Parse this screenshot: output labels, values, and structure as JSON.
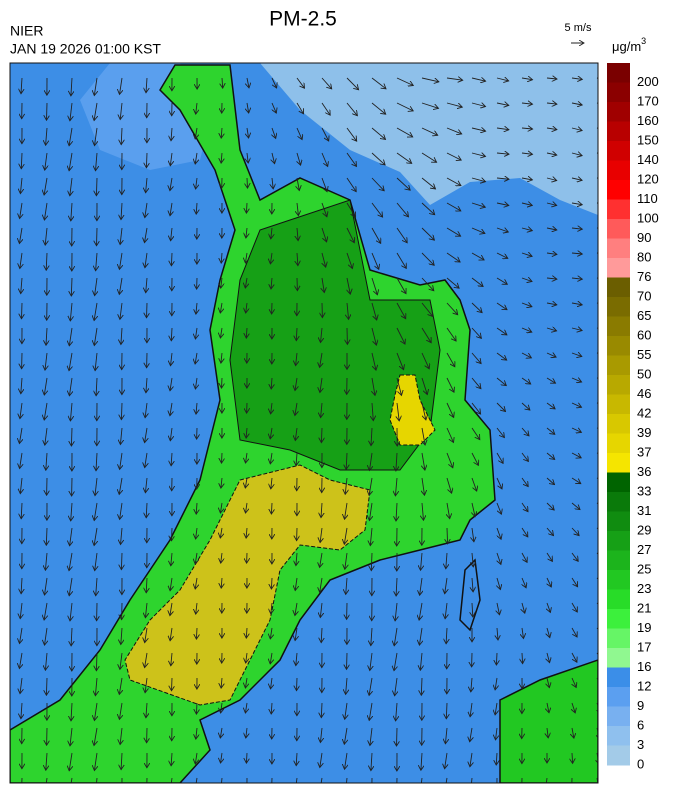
{
  "header": {
    "title": "PM-2.5",
    "agency": "NIER",
    "datetime": "JAN 19 2026 01:00 KST"
  },
  "wind_scale": {
    "label": "5 m/s"
  },
  "legend": {
    "unit": "μg/m",
    "unit_power": "3",
    "levels": [
      200,
      170,
      160,
      150,
      140,
      120,
      110,
      100,
      90,
      80,
      76,
      70,
      65,
      60,
      55,
      50,
      46,
      42,
      39,
      37,
      36,
      33,
      31,
      29,
      27,
      25,
      23,
      21,
      19,
      17,
      16,
      12,
      9,
      6,
      3,
      0
    ],
    "colors": [
      "#7a0000",
      "#8b0000",
      "#a00000",
      "#b80000",
      "#d00000",
      "#e80000",
      "#ff0000",
      "#ff3030",
      "#ff5a5a",
      "#ff7f7f",
      "#ff9a9a",
      "#6b5e00",
      "#7a6c00",
      "#8a7b00",
      "#998a00",
      "#a99a00",
      "#b8a900",
      "#c8b800",
      "#d8c800",
      "#e6d600",
      "#f5e500",
      "#006400",
      "#0a7a0a",
      "#108c10",
      "#16a016",
      "#1cb41c",
      "#22c822",
      "#28dc28",
      "#3cf03c",
      "#66f566",
      "#90f890",
      "#3b8ee8",
      "#5b9ff0",
      "#78b0f0",
      "#8fc0ee",
      "#a3cbe8"
    ]
  }
}
